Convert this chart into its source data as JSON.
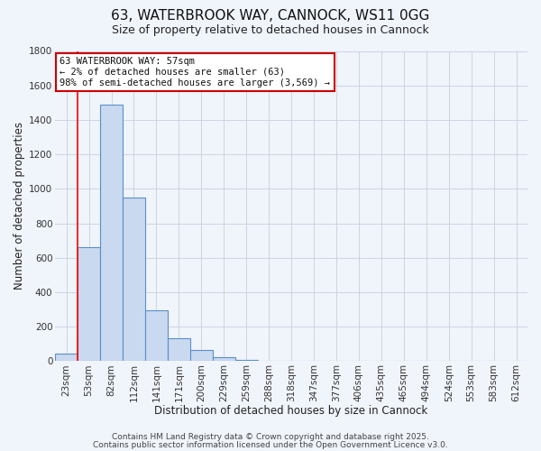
{
  "title": "63, WATERBROOK WAY, CANNOCK, WS11 0GG",
  "subtitle": "Size of property relative to detached houses in Cannock",
  "xlabel": "Distribution of detached houses by size in Cannock",
  "ylabel": "Number of detached properties",
  "bar_labels": [
    "23sqm",
    "53sqm",
    "82sqm",
    "112sqm",
    "141sqm",
    "171sqm",
    "200sqm",
    "229sqm",
    "259sqm",
    "288sqm",
    "318sqm",
    "347sqm",
    "377sqm",
    "406sqm",
    "435sqm",
    "465sqm",
    "494sqm",
    "524sqm",
    "553sqm",
    "583sqm",
    "612sqm"
  ],
  "bar_values": [
    45,
    660,
    1490,
    950,
    295,
    135,
    65,
    22,
    5,
    0,
    0,
    0,
    0,
    0,
    0,
    0,
    0,
    0,
    0,
    0,
    0
  ],
  "bar_color": "#c9d9f0",
  "bar_edge_color": "#5b8fc9",
  "ylim": [
    0,
    1800
  ],
  "yticks": [
    0,
    200,
    400,
    600,
    800,
    1000,
    1200,
    1400,
    1600,
    1800
  ],
  "annotation_text": "63 WATERBROOK WAY: 57sqm\n← 2% of detached houses are smaller (63)\n98% of semi-detached houses are larger (3,569) →",
  "footer1": "Contains HM Land Registry data © Crown copyright and database right 2025.",
  "footer2": "Contains public sector information licensed under the Open Government Licence v3.0.",
  "bg_color": "#f0f4fb",
  "grid_color": "#c8d0de",
  "annotation_box_color": "#ffffff",
  "annotation_box_edge": "#cc0000",
  "red_line_x": 0.5,
  "title_fontsize": 11,
  "subtitle_fontsize": 9,
  "axis_label_fontsize": 8.5,
  "tick_fontsize": 7.5,
  "annotation_fontsize": 7.5,
  "footer_fontsize": 6.5
}
